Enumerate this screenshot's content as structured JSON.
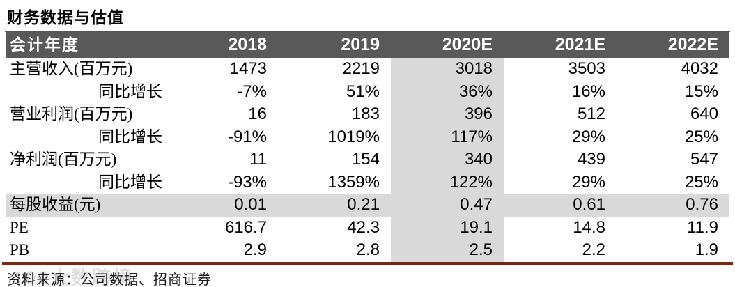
{
  "title": "财务数据与估值",
  "source_note": "资料来源：公司数据、招商证券",
  "watermark": "100大数跨境",
  "colors": {
    "header_bg": "#595959",
    "header_text": "#ffffff",
    "stripe": "#d9d9d9",
    "top_rule": "#8a4423",
    "bottom_rule": "#6e2a1a"
  },
  "table": {
    "header": [
      "会计年度",
      "2018",
      "2019",
      "2020E",
      "2021E",
      "2022E"
    ],
    "highlight_column": "2020E",
    "highlight_value_index": 2,
    "rows": [
      {
        "label": "主营收入(百万元)",
        "indent": false,
        "highlight": false,
        "values": [
          "1473",
          "2219",
          "3018",
          "3503",
          "4032"
        ]
      },
      {
        "label": "同比增长",
        "indent": true,
        "highlight": false,
        "values": [
          "-7%",
          "51%",
          "36%",
          "16%",
          "15%"
        ]
      },
      {
        "label": "营业利润(百万元)",
        "indent": false,
        "highlight": false,
        "values": [
          "16",
          "183",
          "396",
          "512",
          "640"
        ]
      },
      {
        "label": "同比增长",
        "indent": true,
        "highlight": false,
        "values": [
          "-91%",
          "1019%",
          "117%",
          "29%",
          "25%"
        ]
      },
      {
        "label": "净利润(百万元)",
        "indent": false,
        "highlight": false,
        "values": [
          "11",
          "154",
          "340",
          "439",
          "547"
        ]
      },
      {
        "label": "同比增长",
        "indent": true,
        "highlight": false,
        "values": [
          "-93%",
          "1359%",
          "122%",
          "29%",
          "25%"
        ]
      },
      {
        "label": "每股收益(元)",
        "indent": false,
        "highlight": true,
        "values": [
          "0.01",
          "0.21",
          "0.47",
          "0.61",
          "0.76"
        ]
      },
      {
        "label": "PE",
        "indent": false,
        "highlight": false,
        "values": [
          "616.7",
          "42.3",
          "19.1",
          "14.8",
          "11.9"
        ]
      },
      {
        "label": "PB",
        "indent": false,
        "highlight": false,
        "values": [
          "2.9",
          "2.8",
          "2.5",
          "2.2",
          "1.9"
        ]
      }
    ]
  }
}
